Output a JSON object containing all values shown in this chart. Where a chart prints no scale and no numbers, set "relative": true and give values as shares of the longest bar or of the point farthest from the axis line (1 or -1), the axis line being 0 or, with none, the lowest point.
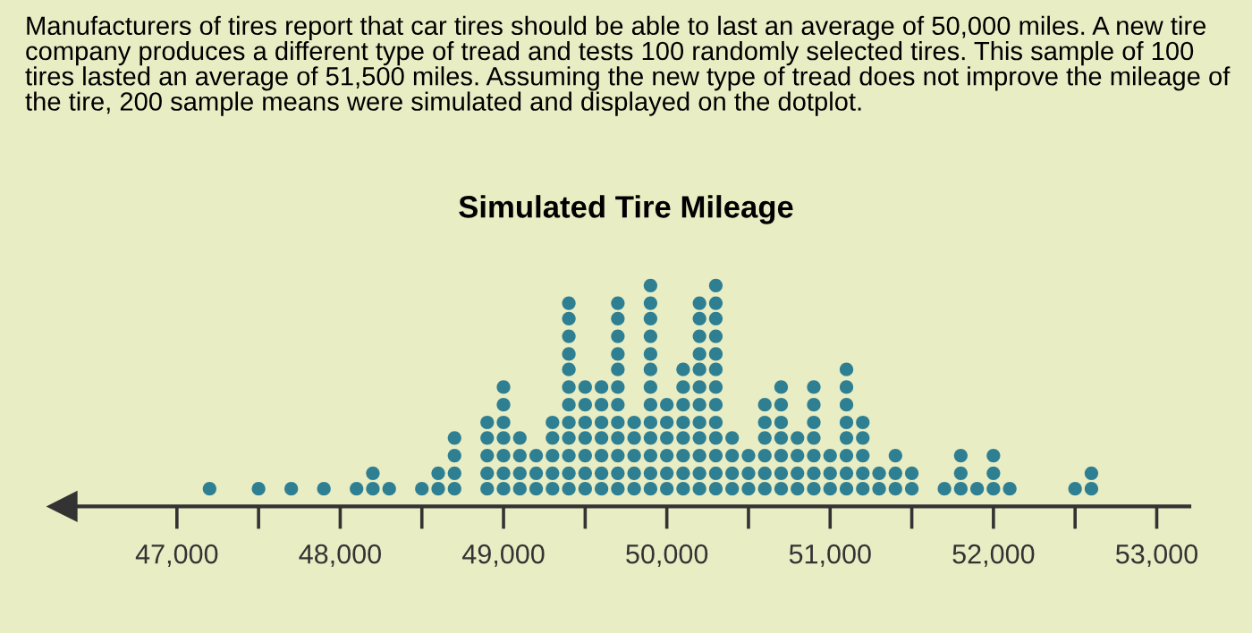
{
  "chart_data": {
    "type": "scatter",
    "title": "Simulated Tire Mileage",
    "annotations": [
      "Manufacturers of tires report that car tires should be able to last an average of 50,000 miles. A new tire company produces a different type of tread and tests 100 randomly selected tires. This sample of 100 tires lasted an average of 51,500 miles. Assuming the new type of tread does not improve the mileage of the tire, 200 sample means were simulated and displayed on the dotplot."
    ],
    "series": [
      {
        "color": "#2f7f93",
        "x": [
          47200,
          47500,
          47700,
          47900,
          48100,
          48200,
          48200,
          48300,
          48500,
          48600,
          48600,
          48700,
          48700,
          48700,
          48700,
          48900,
          48900,
          48900,
          48900,
          48900,
          49000,
          49000,
          49000,
          49000,
          49000,
          49000,
          49000,
          49100,
          49100,
          49100,
          49100,
          49200,
          49200,
          49200,
          49300,
          49300,
          49300,
          49300,
          49300,
          49400,
          49400,
          49400,
          49400,
          49400,
          49400,
          49400,
          49400,
          49400,
          49400,
          49400,
          49400,
          49500,
          49500,
          49500,
          49500,
          49500,
          49500,
          49500,
          49600,
          49600,
          49600,
          49600,
          49600,
          49600,
          49600,
          49700,
          49700,
          49700,
          49700,
          49700,
          49700,
          49700,
          49700,
          49700,
          49700,
          49700,
          49700,
          49800,
          49800,
          49800,
          49800,
          49800,
          49900,
          49900,
          49900,
          49900,
          49900,
          49900,
          49900,
          49900,
          49900,
          49900,
          49900,
          49900,
          49900,
          50000,
          50000,
          50000,
          50000,
          50000,
          50000,
          50100,
          50100,
          50100,
          50100,
          50100,
          50100,
          50100,
          50100,
          50200,
          50200,
          50200,
          50200,
          50200,
          50200,
          50200,
          50200,
          50200,
          50200,
          50200,
          50200,
          50300,
          50300,
          50300,
          50300,
          50300,
          50300,
          50300,
          50300,
          50300,
          50300,
          50300,
          50300,
          50300,
          50400,
          50400,
          50400,
          50400,
          50500,
          50500,
          50500,
          50600,
          50600,
          50600,
          50600,
          50600,
          50600,
          50700,
          50700,
          50700,
          50700,
          50700,
          50700,
          50700,
          50800,
          50800,
          50800,
          50800,
          50900,
          50900,
          50900,
          50900,
          50900,
          50900,
          50900,
          51000,
          51000,
          51000,
          51100,
          51100,
          51100,
          51100,
          51100,
          51100,
          51100,
          51100,
          51200,
          51200,
          51200,
          51200,
          51200,
          51300,
          51300,
          51400,
          51400,
          51400,
          51500,
          51500,
          51700,
          51800,
          51800,
          51800,
          51900,
          52000,
          52000,
          52000,
          52100,
          52500,
          52600,
          52600
        ],
        "values": [
          0.08,
          0.08,
          0.08,
          0.08,
          0.08,
          0.08,
          0.15,
          0.08,
          0.08,
          0.08,
          0.15,
          0.08,
          0.15,
          0.23,
          0.31,
          0.08,
          0.15,
          0.23,
          0.31,
          0.38,
          0.08,
          0.15,
          0.23,
          0.31,
          0.38,
          0.46,
          0.54,
          0.08,
          0.15,
          0.23,
          0.31,
          0.08,
          0.15,
          0.23,
          0.08,
          0.15,
          0.23,
          0.31,
          0.38,
          0.08,
          0.15,
          0.23,
          0.31,
          0.38,
          0.46,
          0.54,
          0.62,
          0.69,
          0.77,
          0.85,
          0.92,
          0.08,
          0.15,
          0.23,
          0.31,
          0.38,
          0.46,
          0.54,
          0.08,
          0.15,
          0.23,
          0.31,
          0.38,
          0.46,
          0.54,
          0.08,
          0.15,
          0.23,
          0.31,
          0.38,
          0.46,
          0.54,
          0.62,
          0.69,
          0.77,
          0.85,
          0.92,
          0.08,
          0.15,
          0.23,
          0.31,
          0.38,
          0.08,
          0.15,
          0.23,
          0.31,
          0.38,
          0.46,
          0.54,
          0.62,
          0.69,
          0.77,
          0.85,
          0.92,
          1,
          0.08,
          0.15,
          0.23,
          0.31,
          0.38,
          0.46,
          0.08,
          0.15,
          0.23,
          0.31,
          0.38,
          0.46,
          0.54,
          0.62,
          0.08,
          0.15,
          0.23,
          0.31,
          0.38,
          0.46,
          0.54,
          0.62,
          0.69,
          0.77,
          0.85,
          0.92,
          0.08,
          0.15,
          0.23,
          0.31,
          0.38,
          0.46,
          0.54,
          0.62,
          0.69,
          0.77,
          0.85,
          0.92,
          1,
          0.08,
          0.15,
          0.23,
          0.31,
          0.08,
          0.15,
          0.23,
          0.08,
          0.15,
          0.23,
          0.31,
          0.38,
          0.46,
          0.08,
          0.15,
          0.23,
          0.31,
          0.38,
          0.46,
          0.54,
          0.08,
          0.15,
          0.23,
          0.31,
          0.08,
          0.15,
          0.23,
          0.31,
          0.38,
          0.46,
          0.54,
          0.08,
          0.15,
          0.23,
          0.08,
          0.15,
          0.23,
          0.31,
          0.38,
          0.46,
          0.54,
          0.62,
          0.08,
          0.15,
          0.23,
          0.31,
          0.38,
          0.08,
          0.15,
          0.08,
          0.15,
          0.23,
          0.08,
          0.15,
          0.08,
          0.08,
          0.15,
          0.23,
          0.08,
          0.08,
          0.15,
          0.23,
          0.08,
          0.08,
          0.08,
          0.15
        ]
      }
    ],
    "relative": true,
    "xlim": [
      46300,
      53200
    ],
    "xticks": [
      {
        "value": 47000,
        "label": "47,000"
      },
      {
        "value": 47500,
        "label": null
      },
      {
        "value": 48000,
        "label": "48,000"
      },
      {
        "value": 48500,
        "label": null
      },
      {
        "value": 49000,
        "label": "49,000"
      },
      {
        "value": 49500,
        "label": null
      },
      {
        "value": 50000,
        "label": "50,000"
      },
      {
        "value": 50500,
        "label": null
      },
      {
        "value": 51000,
        "label": "51,000"
      },
      {
        "value": 51500,
        "label": null
      },
      {
        "value": 52000,
        "label": "52,000"
      },
      {
        "value": 52500,
        "label": null
      },
      {
        "value": 53000,
        "label": "53,000"
      }
    ],
    "tick_labels": "x",
    "grid": false,
    "marker": "circle"
  }
}
